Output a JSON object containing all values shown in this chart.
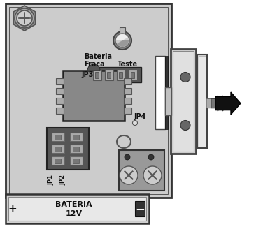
{
  "white": "#ffffff",
  "black": "#111111",
  "board_color": "#cccccc",
  "board_border": "#333333",
  "chip_color": "#888888",
  "battery_bg": "#e0e0e0",
  "sensor_light": "#d8d8d8",
  "sensor_mid": "#bbbbbb",
  "sensor_dark": "#888888",
  "dark": "#444444",
  "med": "#999999",
  "labels": {
    "bateria_fraca_line1": "Bateria",
    "bateria_fraca_line2": "Fraca",
    "teste": "Teste",
    "jp3": "JP3",
    "jp4": "JP4",
    "jp1": "JP1",
    "jp2": "JP2",
    "bateria": "BATERIA",
    "voltage": "12V"
  },
  "figsize": [
    3.76,
    3.48
  ],
  "dpi": 100
}
